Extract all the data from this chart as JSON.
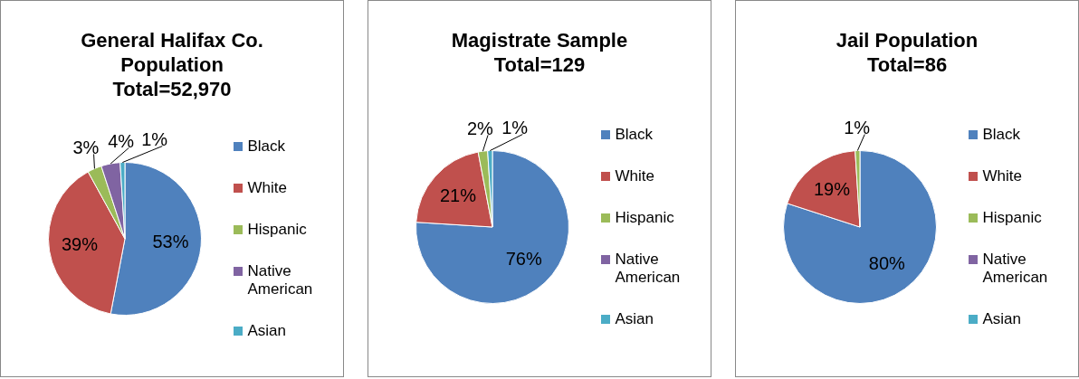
{
  "chart_data": [
    {
      "type": "pie",
      "title": "General Halifax Co.\nPopulation\nTotal=52,970",
      "categories": [
        "Black",
        "White",
        "Hispanic",
        "Native American",
        "Asian"
      ],
      "values": [
        53,
        39,
        3,
        4,
        1
      ],
      "colors": [
        "#4f81bd",
        "#c0504d",
        "#9bbb59",
        "#8064a2",
        "#4bacc6"
      ],
      "value_labels": [
        "53%",
        "39%",
        "3%",
        "4%",
        "1%"
      ],
      "legend": "right"
    },
    {
      "type": "pie",
      "title": "Magistrate Sample\nTotal=129",
      "categories": [
        "Black",
        "White",
        "Hispanic",
        "Native American",
        "Asian"
      ],
      "values": [
        76,
        21,
        2,
        0,
        1
      ],
      "colors": [
        "#4f81bd",
        "#c0504d",
        "#9bbb59",
        "#8064a2",
        "#4bacc6"
      ],
      "value_labels": [
        "76%",
        "21%",
        "2%",
        null,
        "1%"
      ],
      "legend": "right"
    },
    {
      "type": "pie",
      "title": "Jail Population\nTotal=86",
      "categories": [
        "Black",
        "White",
        "Hispanic",
        "Native American",
        "Asian"
      ],
      "values": [
        80,
        19,
        1,
        0,
        0
      ],
      "colors": [
        "#4f81bd",
        "#c0504d",
        "#9bbb59",
        "#8064a2",
        "#4bacc6"
      ],
      "value_labels": [
        "80%",
        "19%",
        "1%",
        null,
        null
      ],
      "legend": "right"
    }
  ]
}
